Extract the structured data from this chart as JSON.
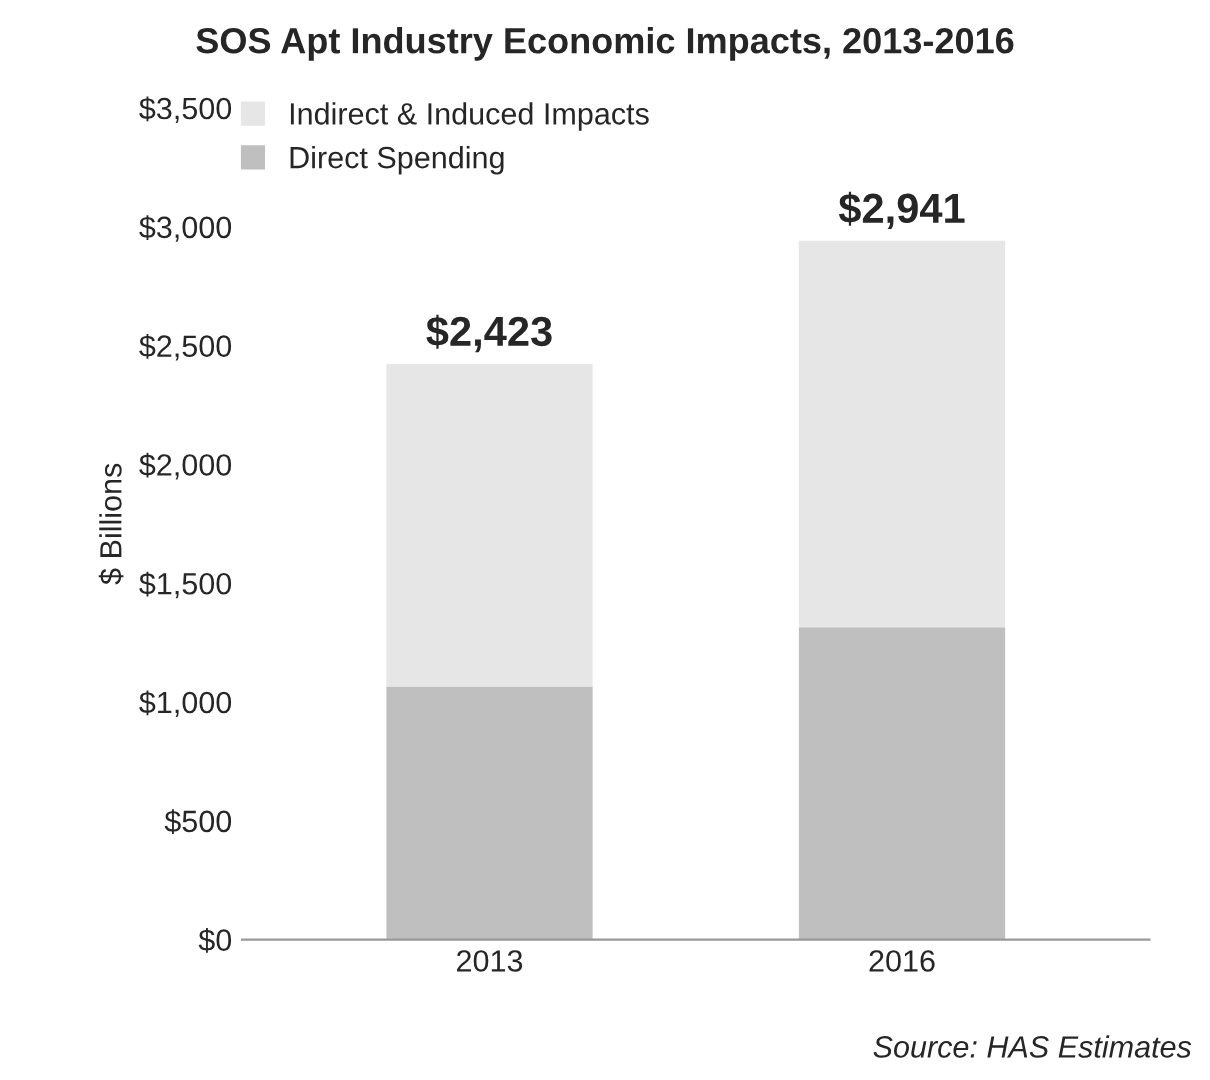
{
  "chart_data": {
    "type": "bar",
    "stacked": true,
    "title": "SOS Apt Industry Economic Impacts, 2013-2016",
    "ylabel": "$ Billions",
    "categories": [
      "2013",
      "2016"
    ],
    "series": [
      {
        "name": "Direct Spending",
        "color": "#bfbfbf",
        "values": [
          1065,
          1315
        ]
      },
      {
        "name": "Indirect & Induced Impacts",
        "color": "#e6e6e6",
        "values": [
          1358,
          1626
        ]
      }
    ],
    "totals": [
      "$2,423",
      "$2,941"
    ],
    "ylim": [
      0,
      3500
    ],
    "yticks": [
      {
        "value": 0,
        "label": "$0"
      },
      {
        "value": 500,
        "label": "$500"
      },
      {
        "value": 1000,
        "label": "$1,000"
      },
      {
        "value": 1500,
        "label": "$1,500"
      },
      {
        "value": 2000,
        "label": "$2,000"
      },
      {
        "value": 2500,
        "label": "$2,500"
      },
      {
        "value": 3000,
        "label": "$3,000"
      },
      {
        "value": 3500,
        "label": "$3,500"
      }
    ],
    "grid": false,
    "legend": "top left",
    "annotations": [
      "Source: HAS Estimates"
    ]
  }
}
